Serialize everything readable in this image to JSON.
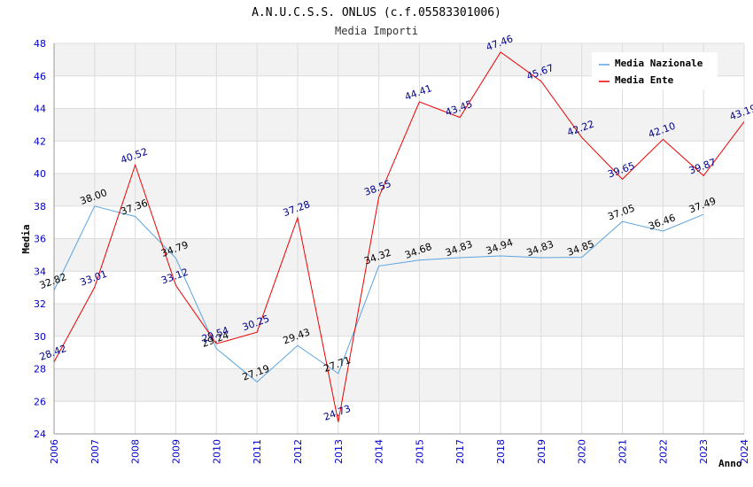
{
  "chart_data": {
    "type": "line",
    "title": "A.N.U.C.S.S. ONLUS (c.f.05583301006)",
    "subtitle": "Media Importi",
    "xlabel": "Anno",
    "ylabel": "Media",
    "ylim": [
      24,
      48
    ],
    "yticks": [
      24,
      26,
      28,
      30,
      32,
      34,
      36,
      38,
      40,
      42,
      44,
      46,
      48
    ],
    "categories": [
      "2006",
      "2007",
      "2008",
      "2009",
      "2010",
      "2011",
      "2012",
      "2013",
      "2014",
      "2015",
      "2017",
      "2018",
      "2019",
      "2020",
      "2021",
      "2022",
      "2023",
      "2024"
    ],
    "grid": true,
    "legend_position": "top-right",
    "series": [
      {
        "name": "Media Nazionale",
        "color": "#5ba3e0",
        "values": [
          32.82,
          38.0,
          37.36,
          34.79,
          29.24,
          27.19,
          29.43,
          27.71,
          34.32,
          34.68,
          34.83,
          34.94,
          34.83,
          34.85,
          37.05,
          36.46,
          37.49,
          null
        ],
        "labels": [
          "32.82",
          "38.00",
          "37.36",
          "34.79",
          "29.24",
          "27.19",
          "29.43",
          "27.71",
          "34.32",
          "34.68",
          "34.83",
          "34.94",
          "34.83",
          "34.85",
          "37.05",
          "36.46",
          "37.49",
          ""
        ]
      },
      {
        "name": "Media Ente",
        "color": "#ee0000",
        "values": [
          28.42,
          33.01,
          40.52,
          33.12,
          29.54,
          30.25,
          37.28,
          24.73,
          38.55,
          44.41,
          43.45,
          47.46,
          45.67,
          42.22,
          39.65,
          42.1,
          39.87,
          43.19
        ],
        "labels": [
          "28.42",
          "33.01",
          "40.52",
          "33.12",
          "29.54",
          "30.25",
          "37.28",
          "24.73",
          "38.55",
          "44.41",
          "43.45",
          "47.46",
          "45.67",
          "42.22",
          "39.65",
          "42.10",
          "39.87",
          "43.19"
        ]
      }
    ]
  }
}
